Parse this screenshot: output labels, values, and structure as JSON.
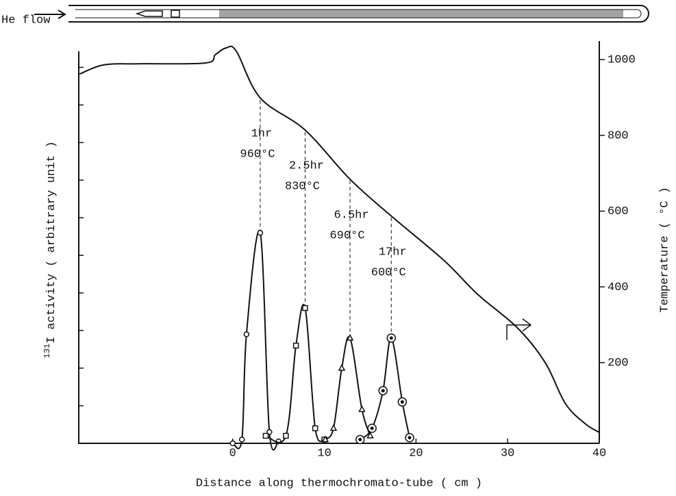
{
  "chart_data": {
    "type": "line",
    "header_label": "He flow",
    "xlabel": "Distance along thermochromato-tube ( cm )",
    "ylabel_superscript": "131",
    "ylabel": "I activity ( arbitrary unit )",
    "y2label": "Temperature ( °C )",
    "xlim": [
      -16.8,
      40
    ],
    "xticks": [
      0,
      10,
      20,
      30,
      40
    ],
    "ylim": [
      0,
      10.7
    ],
    "yticks": [
      0,
      1,
      2,
      3,
      4,
      5,
      6,
      7,
      8,
      9,
      10
    ],
    "y2lim": [
      -13,
      1049
    ],
    "y2ticks": [
      200,
      400,
      600,
      800,
      1000
    ],
    "color": "#111111",
    "temperature": {
      "axis": "y2",
      "x": [
        -16.7,
        -14.1,
        -10.4,
        -3.0,
        -1.9,
        -0.7,
        0.4,
        3.0,
        7.9,
        12.8,
        17.3,
        23,
        26.7,
        31.1,
        34.1,
        36.3,
        38.5,
        40
      ],
      "values": [
        962,
        986,
        989,
        991,
        1013,
        1031,
        1022,
        899,
        814,
        684,
        587,
        471,
        381,
        291,
        200,
        92,
        38,
        16
      ]
    },
    "series": [
      {
        "marker": "circle",
        "time_label": "1hr",
        "temperature_label": "960°C",
        "x": [
          0,
          1,
          1.5,
          3,
          4,
          5
        ],
        "values": [
          0,
          0.1,
          2.9,
          5.6,
          0.3,
          0.05
        ]
      },
      {
        "marker": "square",
        "time_label": "2.5hr",
        "temperature_label": "830°C",
        "x": [
          3.6,
          5.8,
          6.9,
          7.9,
          9.0,
          10
        ],
        "values": [
          0.2,
          0.2,
          2.6,
          3.6,
          0.4,
          0.1
        ]
      },
      {
        "marker": "triangle",
        "time_label": "6.5hr",
        "temperature_label": "690°C",
        "x": [
          10.1,
          11,
          11.9,
          12.8,
          14.1,
          15
        ],
        "values": [
          0.1,
          0.4,
          2.0,
          2.8,
          0.9,
          0.2
        ]
      },
      {
        "marker": "double-circle",
        "time_label": "17hr",
        "temperature_label": "600°C",
        "x": [
          13.9,
          15.2,
          16.4,
          17.3,
          18.5,
          19.3
        ],
        "values": [
          0.1,
          0.4,
          1.4,
          2.8,
          1.1,
          0.15
        ]
      }
    ]
  }
}
